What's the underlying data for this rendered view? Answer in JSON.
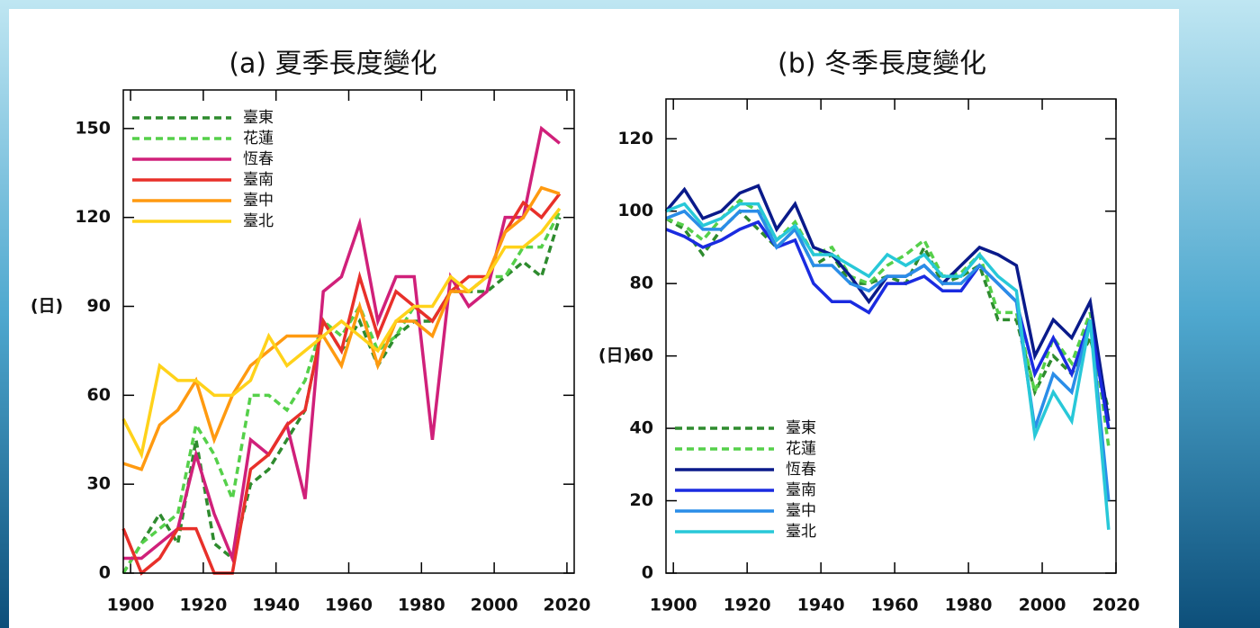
{
  "chart_data": [
    {
      "type": "line",
      "title": "(a) 夏季長度變化",
      "ylabel": "(日)",
      "x": [
        1898,
        1903,
        1908,
        1913,
        1918,
        1923,
        1928,
        1933,
        1938,
        1943,
        1948,
        1953,
        1958,
        1963,
        1968,
        1973,
        1978,
        1983,
        1988,
        1993,
        1998,
        2003,
        2008,
        2013,
        2018
      ],
      "xlim": [
        1898,
        2022
      ],
      "xticks": [
        1900,
        1920,
        1940,
        1960,
        1980,
        2000,
        2020
      ],
      "ylim": [
        0,
        163
      ],
      "yticks": [
        0,
        30,
        60,
        90,
        120,
        150
      ],
      "legend": "upper left",
      "series": [
        {
          "name": "臺東",
          "color": "#2e8b2e",
          "dashed": true,
          "values": [
            0,
            10,
            20,
            10,
            45,
            10,
            5,
            30,
            35,
            45,
            55,
            85,
            75,
            85,
            70,
            80,
            85,
            85,
            95,
            95,
            95,
            100,
            105,
            100,
            120
          ]
        },
        {
          "name": "花蓮",
          "color": "#55d04a",
          "dashed": true,
          "values": [
            0,
            10,
            15,
            20,
            50,
            40,
            25,
            60,
            60,
            55,
            65,
            85,
            80,
            90,
            75,
            80,
            90,
            85,
            95,
            95,
            100,
            100,
            110,
            110,
            122
          ]
        },
        {
          "name": "恆春",
          "color": "#d0207a",
          "dashed": false,
          "values": [
            5,
            5,
            10,
            15,
            40,
            20,
            5,
            45,
            40,
            50,
            25,
            95,
            100,
            118,
            85,
            100,
            100,
            45,
            100,
            90,
            95,
            120,
            120,
            150,
            145
          ]
        },
        {
          "name": "臺南",
          "color": "#e8302a",
          "dashed": false,
          "values": [
            15,
            0,
            5,
            15,
            15,
            0,
            0,
            35,
            40,
            50,
            55,
            85,
            75,
            100,
            80,
            95,
            90,
            85,
            95,
            100,
            100,
            115,
            125,
            120,
            128
          ]
        },
        {
          "name": "臺中",
          "color": "#ff9a10",
          "dashed": false,
          "values": [
            37,
            35,
            50,
            55,
            65,
            45,
            60,
            70,
            75,
            80,
            80,
            80,
            70,
            90,
            70,
            85,
            85,
            80,
            95,
            95,
            100,
            115,
            120,
            130,
            128
          ]
        },
        {
          "name": "臺北",
          "color": "#ffd21a",
          "dashed": false,
          "values": [
            52,
            40,
            70,
            65,
            65,
            60,
            60,
            65,
            80,
            70,
            75,
            80,
            85,
            80,
            75,
            85,
            90,
            90,
            100,
            95,
            100,
            110,
            110,
            115,
            123
          ]
        }
      ]
    },
    {
      "type": "line",
      "title": "(b) 冬季長度變化",
      "ylabel": "(日)",
      "x": [
        1898,
        1903,
        1908,
        1913,
        1918,
        1923,
        1928,
        1933,
        1938,
        1943,
        1948,
        1953,
        1958,
        1963,
        1968,
        1973,
        1978,
        1983,
        1988,
        1993,
        1998,
        2003,
        2008,
        2013,
        2018
      ],
      "xlim": [
        1898,
        2020
      ],
      "xticks": [
        1900,
        1920,
        1940,
        1960,
        1980,
        2000,
        2020
      ],
      "ylim": [
        0,
        131
      ],
      "yticks": [
        0,
        20,
        40,
        60,
        80,
        100,
        120
      ],
      "legend": "lower left",
      "series": [
        {
          "name": "臺東",
          "color": "#2e8b2e",
          "dashed": true,
          "values": [
            98,
            95,
            88,
            95,
            100,
            95,
            90,
            95,
            85,
            88,
            80,
            80,
            82,
            80,
            90,
            80,
            82,
            85,
            70,
            70,
            50,
            60,
            55,
            65,
            45
          ]
        },
        {
          "name": "花蓮",
          "color": "#55d04a",
          "dashed": true,
          "values": [
            98,
            96,
            92,
            98,
            103,
            100,
            92,
            97,
            88,
            90,
            82,
            80,
            85,
            88,
            92,
            82,
            83,
            88,
            72,
            72,
            50,
            65,
            58,
            72,
            35
          ]
        },
        {
          "name": "恆春",
          "color": "#0a1a8a",
          "dashed": false,
          "values": [
            100,
            106,
            98,
            100,
            105,
            107,
            95,
            102,
            90,
            88,
            82,
            75,
            82,
            82,
            85,
            80,
            85,
            90,
            88,
            85,
            60,
            70,
            65,
            75,
            42
          ]
        },
        {
          "name": "臺南",
          "color": "#1a2be0",
          "dashed": false,
          "values": [
            95,
            93,
            90,
            92,
            95,
            97,
            90,
            92,
            80,
            75,
            75,
            72,
            80,
            80,
            82,
            78,
            78,
            85,
            80,
            75,
            55,
            65,
            55,
            70,
            40
          ]
        },
        {
          "name": "臺中",
          "color": "#2a8de8",
          "dashed": false,
          "values": [
            98,
            100,
            95,
            95,
            100,
            100,
            90,
            95,
            85,
            85,
            80,
            78,
            82,
            82,
            85,
            80,
            80,
            85,
            80,
            75,
            40,
            55,
            50,
            70,
            20
          ]
        },
        {
          "name": "臺北",
          "color": "#28c8d8",
          "dashed": false,
          "values": [
            100,
            102,
            96,
            98,
            102,
            102,
            92,
            96,
            88,
            88,
            85,
            82,
            88,
            85,
            88,
            82,
            82,
            88,
            82,
            78,
            38,
            50,
            42,
            70,
            12
          ]
        }
      ]
    }
  ]
}
